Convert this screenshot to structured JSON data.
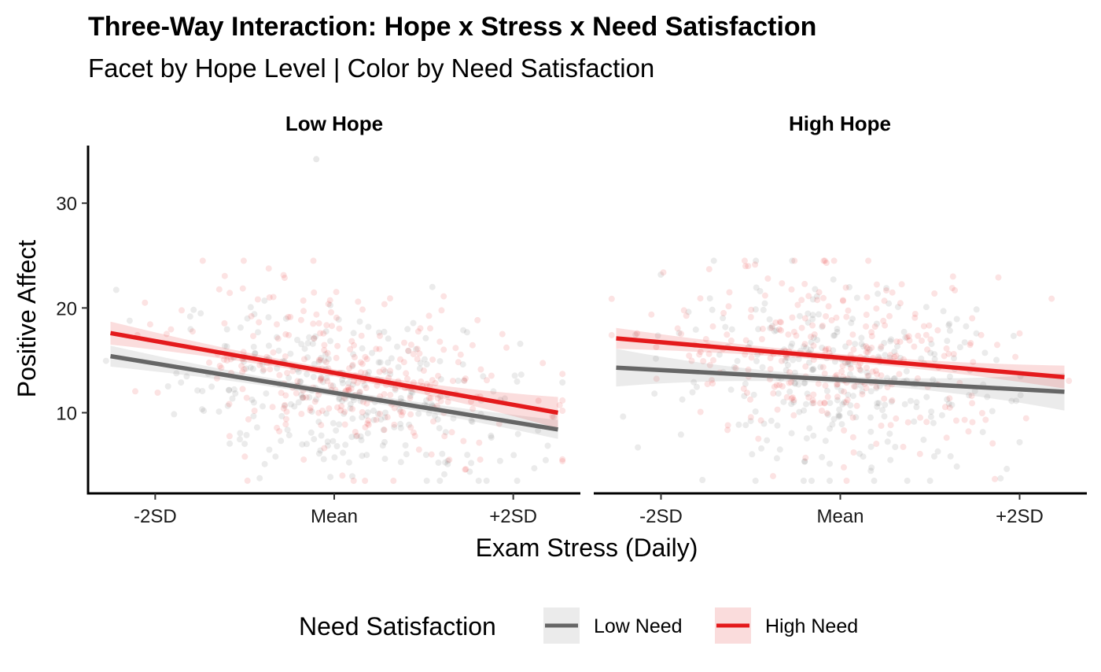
{
  "chart_data": {
    "type": "scatter",
    "title": "Three-Way Interaction: Hope x Stress x Need Satisfaction",
    "subtitle": "Facet by Hope Level | Color by Need Satisfaction",
    "xlabel": "Exam Stress (Daily)",
    "ylabel": "Positive Affect",
    "x_ticks": [
      {
        "value": -2,
        "label": "-2SD"
      },
      {
        "value": 0,
        "label": "Mean"
      },
      {
        "value": 2,
        "label": "+2SD"
      }
    ],
    "y_ticks": [
      10,
      20,
      30
    ],
    "xlim": [
      -2.75,
      2.75
    ],
    "ylim": [
      2.3,
      35.5
    ],
    "grid": false,
    "legend": {
      "title": "Need Satisfaction",
      "position": "bottom",
      "entries": [
        {
          "name": "Low Need",
          "color": "#666666"
        },
        {
          "name": "High Need",
          "color": "#e41a1c"
        }
      ]
    },
    "colors": {
      "low_need": "#666666",
      "high_need": "#e41a1c"
    },
    "facets": [
      {
        "label": "Low Hope",
        "x_range": [
          -2.5,
          2.5
        ],
        "scatter": {
          "x_center": 0.15,
          "x_sd": 0.95,
          "y_mean": 12.5,
          "y_sd": 4.6,
          "y_min": 3.5,
          "y_max": 24.5,
          "n_per_group": 300,
          "outliers": [
            {
              "x": -0.2,
              "y": 34.2,
              "group": "low"
            }
          ]
        },
        "series": [
          {
            "name": "Low Need",
            "color": "#666666",
            "fit_start": 15.4,
            "fit_end": 8.4,
            "ci_start": 1.0,
            "ci_mid": 0.35,
            "ci_end": 0.9
          },
          {
            "name": "High Need",
            "color": "#e41a1c",
            "fit_start": 17.6,
            "fit_end": 10.0,
            "ci_start": 1.1,
            "ci_mid": 0.35,
            "ci_end": 1.5
          }
        ]
      },
      {
        "label": "High Hope",
        "x_range": [
          -2.5,
          2.5
        ],
        "scatter": {
          "x_center": 0.0,
          "x_sd": 0.95,
          "y_mean": 14.5,
          "y_sd": 5.0,
          "y_min": 3.5,
          "y_max": 24.5,
          "n_per_group": 300,
          "outliers": []
        },
        "series": [
          {
            "name": "Low Need",
            "color": "#666666",
            "fit_start": 14.3,
            "fit_end": 12.0,
            "ci_start": 1.8,
            "ci_mid": 0.35,
            "ci_end": 1.8
          },
          {
            "name": "High Need",
            "color": "#e41a1c",
            "fit_start": 17.1,
            "fit_end": 13.4,
            "ci_start": 1.0,
            "ci_mid": 0.35,
            "ci_end": 1.1
          }
        ]
      }
    ]
  }
}
